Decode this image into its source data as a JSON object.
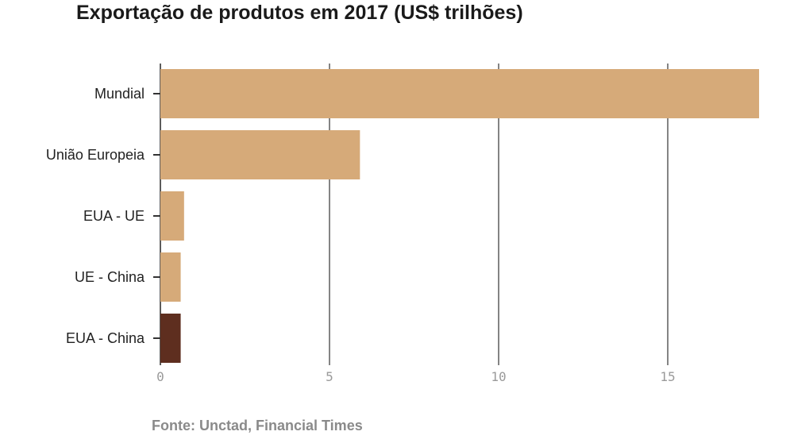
{
  "title": "Exportação de produtos em 2017 (US$ trilhões)",
  "source": "Fonte: Unctad, Financial Times",
  "colors": {
    "default_bar": "#d6aa79",
    "highlight_bar": "#5e2e1f",
    "gridline": "#333333",
    "tick_text": "#9a9a9a"
  },
  "chart_data": {
    "type": "bar",
    "orientation": "horizontal",
    "title": "Exportação de produtos em 2017 (US$ trilhões)",
    "categories": [
      "Mundial",
      "União Europeia",
      "EUA - UE",
      "UE - China",
      "EUA - China"
    ],
    "values": [
      17.7,
      5.9,
      0.7,
      0.6,
      0.6
    ],
    "highlighted": "EUA - China",
    "xlim": [
      0,
      17.7
    ],
    "xticks": [
      "0",
      "5",
      "10",
      "15"
    ],
    "grid": true,
    "source": "Fonte: Unctad, Financial Times"
  }
}
